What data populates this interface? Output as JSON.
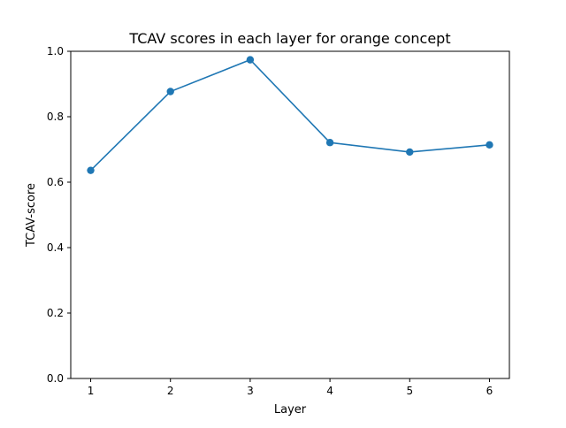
{
  "chart_data": {
    "type": "line",
    "title": "TCAV scores in each layer for orange concept",
    "xlabel": "Layer",
    "ylabel": "TCAV-score",
    "x": [
      1,
      2,
      3,
      4,
      5,
      6
    ],
    "xticks": [
      "1",
      "2",
      "3",
      "4",
      "5",
      "6"
    ],
    "xlim": [
      0.75,
      6.25
    ],
    "ylim": [
      0.0,
      1.0
    ],
    "yticks": [
      "0.0",
      "0.2",
      "0.4",
      "0.6",
      "0.8",
      "1.0"
    ],
    "grid": false,
    "series": [
      {
        "values": [
          0.636,
          0.877,
          0.974,
          0.721,
          0.692,
          0.714
        ],
        "color": "#1f77b4",
        "marker": "circle"
      }
    ]
  }
}
